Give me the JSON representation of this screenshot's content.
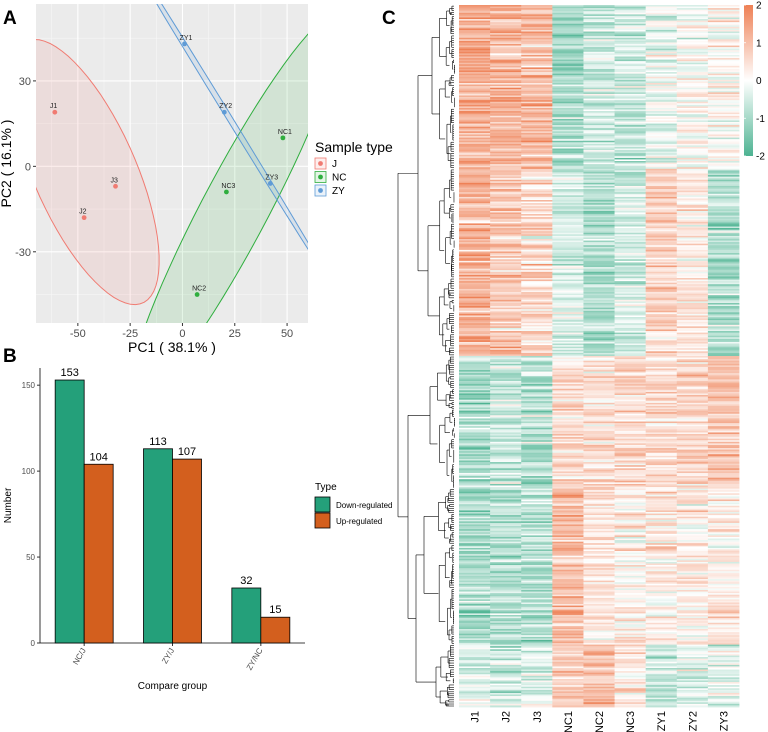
{
  "chart_data": [
    {
      "panel": "A",
      "type": "scatter",
      "title": "",
      "xlabel": "PC1 ( 38.1% )",
      "ylabel": "PC2 ( 16.1% )",
      "xlim": [
        -70,
        60
      ],
      "ylim": [
        -55,
        57
      ],
      "xticks": [
        -50,
        -25,
        0,
        25,
        50
      ],
      "yticks": [
        -30,
        0,
        30
      ],
      "legend_title": "Sample type",
      "legend_position": "right",
      "series": [
        {
          "name": "J",
          "color": "#F07B72",
          "points": [
            {
              "label": "J1",
              "x": -61,
              "y": 19
            },
            {
              "label": "J2",
              "x": -47,
              "y": -18
            },
            {
              "label": "J3",
              "x": -32,
              "y": -7
            }
          ]
        },
        {
          "name": "NC",
          "color": "#2FAE3E",
          "points": [
            {
              "label": "NC1",
              "x": 48,
              "y": 10
            },
            {
              "label": "NC2",
              "x": 7,
              "y": -45
            },
            {
              "label": "NC3",
              "x": 21,
              "y": -9
            }
          ]
        },
        {
          "name": "ZY",
          "color": "#5F9BD6",
          "points": [
            {
              "label": "ZY1",
              "x": 1,
              "y": 43
            },
            {
              "label": "ZY2",
              "x": 20,
              "y": 19
            },
            {
              "label": "ZY3",
              "x": 42,
              "y": -6
            }
          ]
        }
      ]
    },
    {
      "panel": "B",
      "type": "bar",
      "title": "",
      "xlabel": "Compare group",
      "ylabel": "Number",
      "ylim": [
        0,
        160
      ],
      "yticks": [
        0,
        50,
        100,
        150
      ],
      "categories": [
        "NC/J",
        "ZY/J",
        "ZY/NC"
      ],
      "legend_title": "Type",
      "legend_position": "right",
      "series": [
        {
          "name": "Down-regulated",
          "color": "#24A07A",
          "values": [
            153,
            113,
            32
          ]
        },
        {
          "name": "Up-regulated",
          "color": "#D35F1E",
          "values": [
            104,
            107,
            15
          ]
        }
      ]
    },
    {
      "panel": "C",
      "type": "heatmap",
      "title": "",
      "columns": [
        "J1",
        "J2",
        "J3",
        "NC1",
        "NC2",
        "NC3",
        "ZY1",
        "ZY2",
        "ZY3"
      ],
      "color_scale": {
        "min": -2,
        "max": 2,
        "low": "#4DB392",
        "mid": "#FFFFFF",
        "high": "#EE8055"
      },
      "colorbar_ticks": [
        2,
        1,
        0,
        -1,
        -2
      ],
      "row_clusters": [
        {
          "rows": 105,
          "pattern": [
            1.2,
            1.1,
            1.0,
            -1.0,
            -0.6,
            -0.6,
            -0.2,
            0.1,
            0.1
          ]
        },
        {
          "rows": 120,
          "pattern": [
            1.2,
            0.9,
            0.6,
            -0.5,
            -0.9,
            -0.5,
            0.7,
            0.3,
            -0.9
          ]
        },
        {
          "rows": 85,
          "pattern": [
            -0.9,
            -0.6,
            -0.8,
            0.5,
            0.5,
            0.6,
            0.6,
            0.6,
            0.9
          ]
        },
        {
          "rows": 100,
          "pattern": [
            -0.9,
            -0.8,
            -0.8,
            1.0,
            0.4,
            0.2,
            0.3,
            0.2,
            0.3
          ]
        },
        {
          "rows": 40,
          "pattern": [
            -0.3,
            -0.5,
            -0.4,
            0.9,
            1.0,
            0.4,
            -0.6,
            -0.4,
            -0.3
          ]
        }
      ]
    }
  ],
  "panel_labels": {
    "a": "A",
    "b": "B",
    "c": "C"
  }
}
